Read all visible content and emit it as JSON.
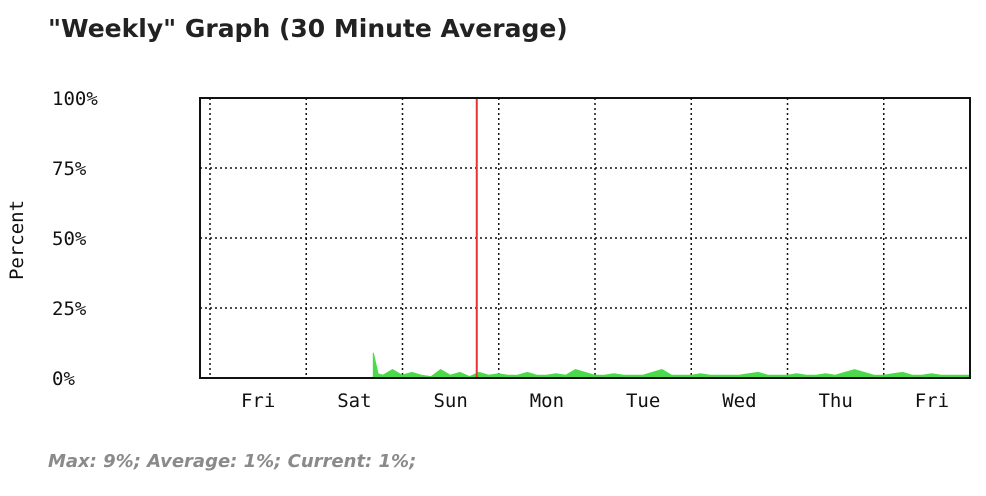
{
  "title": "\"Weekly\" Graph (30 Minute Average)",
  "stats": "Max: 9%; Average: 1%; Current: 1%;",
  "colors": {
    "series": "#4cd94c",
    "marker": "#e83232",
    "frame": "#111111",
    "grid": "#111111"
  },
  "chart_data": {
    "type": "area",
    "ylabel": "Percent",
    "ylim": [
      0,
      100
    ],
    "yticks": [
      "0%",
      "25%",
      "50%",
      "75%",
      "100%"
    ],
    "xlabels": [
      "Fri",
      "Sat",
      "Sun",
      "Mon",
      "Tue",
      "Wed",
      "Thu",
      "Fri"
    ],
    "x_range_days": [
      0,
      8
    ],
    "marker_day": 3.0,
    "series": [
      {
        "points": [
          [
            1.8,
            0
          ],
          [
            1.8,
            9
          ],
          [
            1.85,
            1.5
          ],
          [
            1.9,
            1
          ],
          [
            2.0,
            3
          ],
          [
            2.1,
            1
          ],
          [
            2.2,
            2
          ],
          [
            2.3,
            1
          ],
          [
            2.4,
            0.5
          ],
          [
            2.5,
            3
          ],
          [
            2.6,
            1
          ],
          [
            2.7,
            2
          ],
          [
            2.8,
            0.5
          ],
          [
            2.9,
            2
          ],
          [
            3.0,
            1
          ],
          [
            3.1,
            1.5
          ],
          [
            3.2,
            1
          ],
          [
            3.3,
            1
          ],
          [
            3.4,
            2
          ],
          [
            3.5,
            1
          ],
          [
            3.6,
            1
          ],
          [
            3.7,
            1.5
          ],
          [
            3.8,
            1
          ],
          [
            3.9,
            3
          ],
          [
            4.0,
            2
          ],
          [
            4.1,
            1
          ],
          [
            4.2,
            1
          ],
          [
            4.3,
            1.5
          ],
          [
            4.4,
            1
          ],
          [
            4.5,
            1
          ],
          [
            4.6,
            1
          ],
          [
            4.7,
            2
          ],
          [
            4.8,
            3
          ],
          [
            4.9,
            1
          ],
          [
            5.0,
            1
          ],
          [
            5.1,
            1
          ],
          [
            5.2,
            1.5
          ],
          [
            5.3,
            1
          ],
          [
            5.4,
            1
          ],
          [
            5.5,
            1
          ],
          [
            5.6,
            1
          ],
          [
            5.7,
            1.5
          ],
          [
            5.8,
            2
          ],
          [
            5.9,
            1
          ],
          [
            6.0,
            1
          ],
          [
            6.1,
            1
          ],
          [
            6.2,
            1.5
          ],
          [
            6.3,
            1
          ],
          [
            6.4,
            1
          ],
          [
            6.5,
            1.5
          ],
          [
            6.6,
            1
          ],
          [
            6.7,
            2
          ],
          [
            6.8,
            3
          ],
          [
            6.9,
            2
          ],
          [
            7.0,
            1
          ],
          [
            7.1,
            1
          ],
          [
            7.2,
            1.5
          ],
          [
            7.3,
            2
          ],
          [
            7.4,
            1
          ],
          [
            7.5,
            1
          ],
          [
            7.6,
            1.5
          ],
          [
            7.7,
            1
          ],
          [
            7.8,
            1
          ],
          [
            7.9,
            1
          ],
          [
            8.0,
            1
          ],
          [
            8.0,
            0
          ]
        ]
      }
    ]
  }
}
